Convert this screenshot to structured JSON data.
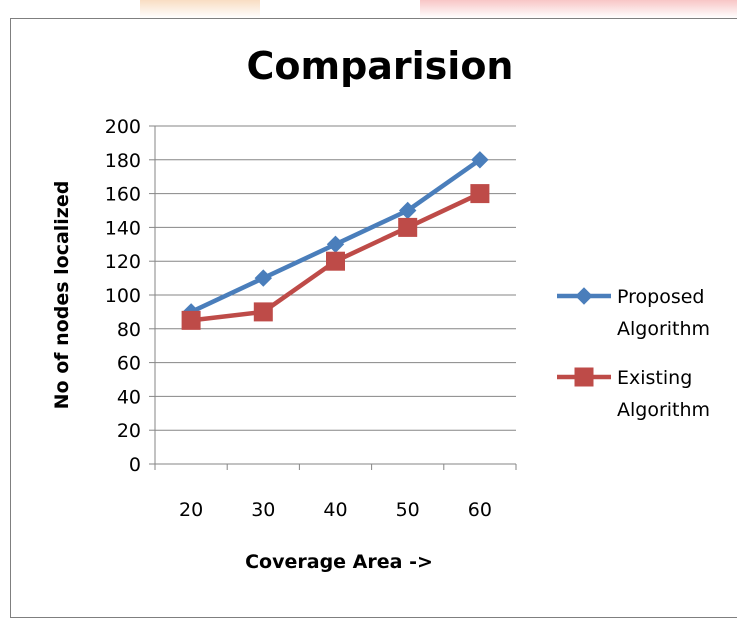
{
  "chart_data": {
    "type": "line",
    "title": "Comparision",
    "xlabel": "Coverage Area ->",
    "ylabel": "No of nodes localized",
    "categories": [
      "20",
      "30",
      "40",
      "50",
      "60"
    ],
    "ylim": [
      0,
      200
    ],
    "y_ticks": [
      "0",
      "20",
      "40",
      "60",
      "80",
      "100",
      "120",
      "140",
      "160",
      "180",
      "200"
    ],
    "grid": true,
    "legend_position": "right",
    "series": [
      {
        "name": "Proposed Algorithm",
        "name_lines": [
          "Proposed",
          "Algorithm"
        ],
        "values": [
          90,
          110,
          130,
          150,
          180
        ],
        "color": "#4a7ebb",
        "marker": "diamond"
      },
      {
        "name": "Existing Algorithm",
        "name_lines": [
          "Existing",
          "Algorithm"
        ],
        "values": [
          85,
          90,
          120,
          140,
          160
        ],
        "color": "#be4b48",
        "marker": "square"
      }
    ]
  },
  "colors": {
    "gridline": "#868686",
    "axis": "#868686",
    "border": "#7f7f7f",
    "decor_orange": "#f7c9a0",
    "decor_red": "#f5a8a8"
  }
}
